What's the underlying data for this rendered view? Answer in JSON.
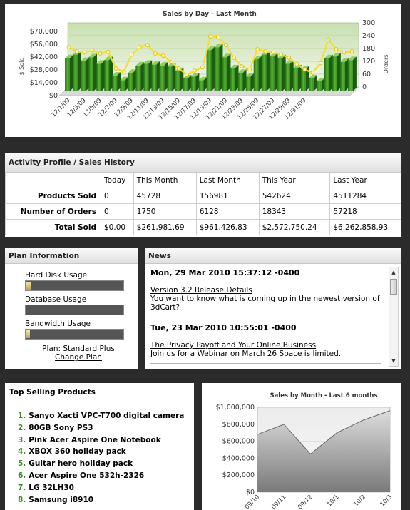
{
  "sales_by_day": {
    "title": "Sales by Day - Last Month",
    "ylabel_left": "$ Sold",
    "ylabel_right": "Orders"
  },
  "activity": {
    "title": "Activity Profile / Sales History",
    "columns": [
      "Today",
      "This Month",
      "Last Month",
      "This Year",
      "Last Year"
    ],
    "rows": [
      {
        "label": "Products Sold",
        "values": [
          "0",
          "45728",
          "156981",
          "542624",
          "4511284"
        ]
      },
      {
        "label": "Number of Orders",
        "values": [
          "0",
          "1750",
          "6128",
          "18343",
          "57218"
        ]
      },
      {
        "label": "Total Sold",
        "values": [
          "$0.00",
          "$261,981.69",
          "$961,426.83",
          "$2,572,750.24",
          "$6,262,858.93"
        ]
      }
    ]
  },
  "plan": {
    "title": "Plan Information",
    "usages": [
      {
        "label": "Hard Disk Usage",
        "fraction": 0.05
      },
      {
        "label": "Database Usage",
        "fraction": 0.0
      },
      {
        "label": "Bandwidth Usage",
        "fraction": 0.04
      }
    ],
    "plan_text": "Plan: Standard Plus",
    "change_label": "Change Plan"
  },
  "news": {
    "title": "News",
    "items": [
      {
        "date": "Mon, 29 Mar 2010 15:37:12 -0400",
        "link": "Version 3.2 Release Details",
        "text": "You want to know what is coming up in the newest version of 3dCart?"
      },
      {
        "date": "Tue, 23 Mar 2010 10:55:01 -0400",
        "link": "The Privacy Payoff and Your Online Business",
        "text": "Join us for a Webinar on March 26 Space is limited."
      }
    ]
  },
  "top_selling": {
    "title": "Top Selling Products",
    "items": [
      "Sanyo Xacti VPC-T700 digital camera",
      "80GB Sony PS3",
      "Pink Acer Aspire One Notebook",
      "XBOX 360 holiday pack",
      "Guitar hero holiday pack",
      "Acer Aspire One 532h-2326",
      "LG 32LH30",
      "Samsung i8910"
    ]
  },
  "chart_data": [
    {
      "type": "bar",
      "title": "Sales by Day - Last Month",
      "ylabel": "$ Sold",
      "y2label": "Orders",
      "ylim": [
        0,
        70000
      ],
      "y2lim": [
        0,
        300
      ],
      "yticks": [
        "$0",
        "$14,000",
        "$28,000",
        "$42,000",
        "$56,000",
        "$70,000"
      ],
      "y2ticks": [
        "0",
        "60",
        "120",
        "180",
        "240",
        "300"
      ],
      "xtick_labels": [
        "12/1/09",
        "12/3/09",
        "12/5/09",
        "12/7/09",
        "12/9/09",
        "12/11/09",
        "12/13/09",
        "12/15/09",
        "12/17/09",
        "12/19/09",
        "12/21/09",
        "12/23/09",
        "12/25/09",
        "12/27/09",
        "12/29/09",
        "12/31/09"
      ],
      "series": [
        {
          "values": [
            36000,
            40000,
            33000,
            37000,
            30000,
            34000,
            17000,
            12000,
            20000,
            28000,
            30000,
            29000,
            28000,
            27000,
            22000,
            14000,
            16000,
            12000,
            45000,
            48000,
            37000,
            25000,
            20000,
            16000,
            35000,
            40000,
            38000,
            36000,
            30000,
            25000,
            24000,
            14000,
            11000,
            36000,
            38000,
            32000,
            34000
          ]
        },
        {
          "values": [
            200,
            180,
            175,
            185,
            170,
            178,
            100,
            85,
            165,
            200,
            210,
            170,
            160,
            130,
            100,
            70,
            90,
            105,
            250,
            245,
            210,
            150,
            110,
            95,
            190,
            180,
            175,
            165,
            150,
            120,
            95,
            80,
            125,
            235,
            190,
            175,
            180
          ]
        }
      ]
    },
    {
      "type": "area",
      "title": "Sales by Month - Last 6 months",
      "ylim": [
        0,
        1000000
      ],
      "yticks": [
        "$0",
        "$200,000",
        "$400,000",
        "$600,000",
        "$800,000",
        "$1,000,000"
      ],
      "categories": [
        "09/10",
        "09/11",
        "09/12",
        "10/1",
        "10/2",
        "10/3"
      ],
      "values": [
        680000,
        800000,
        450000,
        700000,
        850000,
        960000
      ]
    }
  ]
}
